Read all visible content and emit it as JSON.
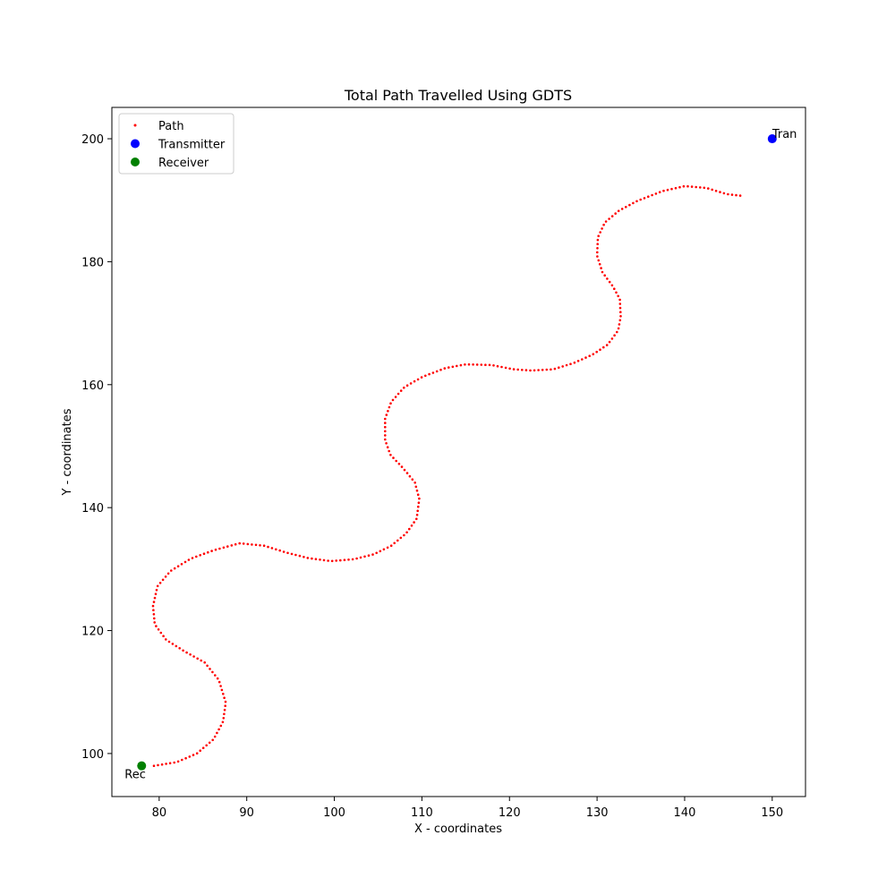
{
  "chart_data": {
    "type": "scatter",
    "title": "Total Path Travelled Using GDTS",
    "xlabel": "X - coordinates",
    "ylabel": "Y - coordinates",
    "xlim": [
      74.6,
      153.8
    ],
    "ylim": [
      93.0,
      205.1
    ],
    "xticks": [
      80,
      90,
      100,
      110,
      120,
      130,
      140,
      150
    ],
    "yticks": [
      100,
      120,
      140,
      160,
      180,
      200
    ],
    "grid": false,
    "legend_position": "top-left",
    "series": [
      {
        "name": "Path",
        "color": "#ff0000",
        "marker": "small-dot",
        "anchors": [
          [
            79.4,
            98.0
          ],
          [
            82.0,
            98.6
          ],
          [
            84.3,
            100.0
          ],
          [
            86.2,
            102.3
          ],
          [
            87.3,
            105.2
          ],
          [
            87.6,
            108.3
          ],
          [
            86.8,
            112.0
          ],
          [
            85.2,
            114.8
          ],
          [
            82.8,
            116.7
          ],
          [
            80.8,
            118.5
          ],
          [
            79.5,
            121.0
          ],
          [
            79.3,
            124.0
          ],
          [
            79.8,
            127.2
          ],
          [
            81.3,
            129.7
          ],
          [
            83.6,
            131.7
          ],
          [
            86.3,
            133.1
          ],
          [
            89.2,
            134.2
          ],
          [
            92.0,
            133.8
          ],
          [
            94.5,
            132.7
          ],
          [
            97.0,
            131.8
          ],
          [
            99.6,
            131.3
          ],
          [
            102.2,
            131.6
          ],
          [
            104.5,
            132.4
          ],
          [
            106.5,
            133.8
          ],
          [
            108.2,
            135.8
          ],
          [
            109.4,
            138.2
          ],
          [
            109.7,
            141.4
          ],
          [
            109.2,
            144.1
          ],
          [
            107.8,
            146.5
          ],
          [
            106.4,
            148.6
          ],
          [
            105.8,
            151.0
          ],
          [
            105.8,
            154.5
          ],
          [
            106.5,
            157.2
          ],
          [
            108.0,
            159.6
          ],
          [
            110.1,
            161.3
          ],
          [
            112.7,
            162.7
          ],
          [
            115.0,
            163.3
          ],
          [
            117.9,
            163.2
          ],
          [
            120.5,
            162.5
          ],
          [
            122.5,
            162.3
          ],
          [
            125.0,
            162.5
          ],
          [
            127.3,
            163.5
          ],
          [
            129.5,
            164.9
          ],
          [
            131.2,
            166.5
          ],
          [
            132.4,
            168.8
          ],
          [
            132.7,
            171.0
          ],
          [
            132.6,
            173.9
          ],
          [
            131.8,
            176.0
          ],
          [
            130.6,
            178.3
          ],
          [
            130.0,
            181.0
          ],
          [
            130.1,
            184.0
          ],
          [
            130.9,
            186.4
          ],
          [
            132.5,
            188.3
          ],
          [
            134.6,
            189.9
          ],
          [
            137.5,
            191.5
          ],
          [
            140.0,
            192.3
          ],
          [
            142.5,
            192.0
          ],
          [
            144.8,
            191.0
          ],
          [
            146.6,
            190.7
          ]
        ]
      },
      {
        "name": "Transmitter",
        "color": "#0000ff",
        "marker": "circle",
        "x": [
          150
        ],
        "y": [
          200
        ],
        "label": "Tran"
      },
      {
        "name": "Receiver",
        "color": "#008000",
        "marker": "circle",
        "x": [
          78
        ],
        "y": [
          98
        ],
        "label": "Rec"
      }
    ]
  }
}
